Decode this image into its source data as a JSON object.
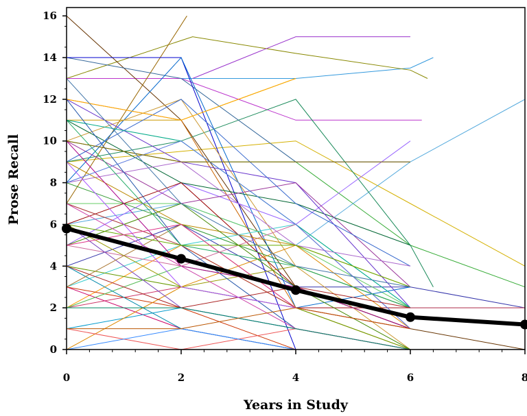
{
  "chart_data": {
    "type": "line",
    "title": "",
    "xlabel": "Years in Study",
    "ylabel": "Prose Recall",
    "xlim": [
      0,
      8
    ],
    "ylim": [
      0,
      16.4
    ],
    "xticks": [
      "0",
      "2",
      "4",
      "6",
      "8"
    ],
    "yticks": [
      "0",
      "2",
      "4",
      "6",
      "8",
      "10",
      "12",
      "14",
      "16"
    ],
    "grid": false,
    "legend": "none",
    "mean_series": {
      "color": "#000000",
      "points": [
        [
          0,
          5.8
        ],
        [
          2,
          4.35
        ],
        [
          4,
          2.85
        ],
        [
          6,
          1.55
        ],
        [
          8,
          1.2
        ]
      ]
    },
    "individual_series": [
      {
        "color": "#d4b000",
        "points": [
          [
            0,
            9
          ],
          [
            2,
            9.5
          ],
          [
            4,
            10
          ],
          [
            6,
            7
          ],
          [
            8,
            4
          ]
        ]
      },
      {
        "color": "#33aa33",
        "points": [
          [
            0,
            10
          ],
          [
            2,
            9
          ],
          [
            4,
            9
          ],
          [
            6,
            5
          ],
          [
            8,
            3
          ]
        ]
      },
      {
        "color": "#3399dd",
        "points": [
          [
            0,
            13
          ],
          [
            2,
            13
          ],
          [
            4,
            13
          ],
          [
            6,
            13.5
          ],
          [
            6.4,
            14
          ]
        ]
      },
      {
        "color": "#888800",
        "points": [
          [
            0,
            13
          ],
          [
            2.2,
            15
          ],
          [
            4,
            14.2
          ],
          [
            6,
            13.4
          ],
          [
            6.3,
            13
          ]
        ]
      },
      {
        "color": "#9933cc",
        "points": [
          [
            2.2,
            13
          ],
          [
            4,
            15
          ],
          [
            6,
            15
          ]
        ]
      },
      {
        "color": "#bb33cc",
        "points": [
          [
            0,
            13
          ],
          [
            2,
            13
          ],
          [
            4,
            11
          ],
          [
            6.2,
            11
          ]
        ]
      },
      {
        "color": "#55aadd",
        "points": [
          [
            0,
            6
          ],
          [
            2,
            7
          ],
          [
            4,
            5
          ],
          [
            6,
            9
          ],
          [
            8,
            12
          ]
        ]
      },
      {
        "color": "#663300",
        "points": [
          [
            0,
            16
          ],
          [
            2,
            11
          ],
          [
            4,
            3
          ],
          [
            6,
            1
          ],
          [
            8,
            0
          ]
        ]
      },
      {
        "color": "#996600",
        "points": [
          [
            0,
            7
          ],
          [
            2.1,
            16
          ]
        ]
      },
      {
        "color": "#1a8a5a",
        "points": [
          [
            0,
            9
          ],
          [
            2,
            10
          ],
          [
            4,
            12
          ],
          [
            6,
            5
          ],
          [
            6.4,
            3
          ]
        ]
      },
      {
        "color": "#336699",
        "points": [
          [
            0,
            14
          ],
          [
            2,
            13
          ],
          [
            4,
            9
          ],
          [
            6,
            9
          ]
        ]
      },
      {
        "color": "#0000cc",
        "points": [
          [
            0,
            14
          ],
          [
            2,
            14
          ],
          [
            4,
            0
          ]
        ]
      },
      {
        "color": "#3333aa",
        "points": [
          [
            0,
            4
          ],
          [
            2,
            6
          ],
          [
            4,
            3
          ],
          [
            6,
            3
          ],
          [
            8,
            2
          ]
        ]
      },
      {
        "color": "#cc9900",
        "points": [
          [
            0,
            11
          ],
          [
            2,
            11
          ],
          [
            4,
            13
          ]
        ]
      },
      {
        "color": "#66cc66",
        "points": [
          [
            0,
            7
          ],
          [
            2,
            7
          ],
          [
            4,
            5
          ],
          [
            6,
            2
          ],
          [
            8,
            2
          ]
        ]
      },
      {
        "color": "#cc3366",
        "points": [
          [
            0,
            2
          ],
          [
            2,
            3
          ],
          [
            4,
            2
          ],
          [
            6,
            2
          ],
          [
            8,
            2
          ]
        ]
      },
      {
        "color": "#0066cc",
        "points": [
          [
            0,
            8
          ],
          [
            2,
            14
          ],
          [
            4,
            2
          ],
          [
            6,
            3
          ]
        ]
      },
      {
        "color": "#cc6600",
        "points": [
          [
            0,
            12
          ],
          [
            2,
            11
          ],
          [
            4,
            2
          ],
          [
            6,
            1
          ]
        ]
      },
      {
        "color": "#cc9933",
        "points": [
          [
            0,
            10
          ],
          [
            2,
            12
          ],
          [
            4,
            4
          ],
          [
            6,
            0
          ]
        ]
      },
      {
        "color": "#9966ff",
        "points": [
          [
            0,
            5
          ],
          [
            2,
            8
          ],
          [
            4,
            6
          ],
          [
            6,
            10
          ]
        ]
      },
      {
        "color": "#33cccc",
        "points": [
          [
            0,
            3
          ],
          [
            2,
            5
          ],
          [
            4,
            6
          ],
          [
            6,
            2
          ]
        ]
      },
      {
        "color": "#006633",
        "points": [
          [
            0,
            11
          ],
          [
            2,
            8
          ],
          [
            4,
            7
          ],
          [
            6,
            5
          ]
        ]
      },
      {
        "color": "#990000",
        "points": [
          [
            0,
            6
          ],
          [
            2,
            8
          ],
          [
            4,
            3
          ],
          [
            6,
            1
          ]
        ]
      },
      {
        "color": "#ff9900",
        "points": [
          [
            0,
            2
          ],
          [
            2,
            5
          ],
          [
            4,
            2
          ],
          [
            6,
            0
          ]
        ]
      },
      {
        "color": "#6633cc",
        "points": [
          [
            0,
            12
          ],
          [
            2,
            9
          ],
          [
            4,
            8
          ],
          [
            6,
            2
          ]
        ]
      },
      {
        "color": "#cc0066",
        "points": [
          [
            0,
            3
          ],
          [
            2,
            1
          ],
          [
            4,
            0
          ]
        ]
      },
      {
        "color": "#339933",
        "points": [
          [
            0,
            8
          ],
          [
            2,
            6
          ],
          [
            4,
            4
          ],
          [
            6,
            2
          ]
        ]
      },
      {
        "color": "#0099cc",
        "points": [
          [
            0,
            1
          ],
          [
            2,
            2
          ],
          [
            4,
            1
          ],
          [
            6,
            0
          ]
        ]
      },
      {
        "color": "#993399",
        "points": [
          [
            0,
            10
          ],
          [
            2,
            7
          ],
          [
            4,
            8
          ],
          [
            6,
            3
          ]
        ]
      },
      {
        "color": "#669900",
        "points": [
          [
            0,
            4
          ],
          [
            2,
            3
          ],
          [
            4,
            2
          ],
          [
            6,
            0
          ]
        ]
      },
      {
        "color": "#cc6699",
        "points": [
          [
            0,
            5
          ],
          [
            2,
            4
          ],
          [
            4,
            6
          ],
          [
            6,
            1
          ]
        ]
      },
      {
        "color": "#3366cc",
        "points": [
          [
            0,
            9
          ],
          [
            2,
            12
          ],
          [
            4,
            7
          ],
          [
            6,
            4
          ]
        ]
      },
      {
        "color": "#999900",
        "points": [
          [
            0,
            6
          ],
          [
            2,
            3
          ],
          [
            4,
            4
          ],
          [
            6,
            2
          ]
        ]
      },
      {
        "color": "#cc3300",
        "points": [
          [
            0,
            3
          ],
          [
            2,
            2
          ],
          [
            4,
            0
          ]
        ]
      },
      {
        "color": "#00aa88",
        "points": [
          [
            0,
            11
          ],
          [
            2,
            10
          ],
          [
            4,
            6
          ],
          [
            6,
            2
          ]
        ]
      },
      {
        "color": "#aa66cc",
        "points": [
          [
            0,
            8
          ],
          [
            2,
            9
          ],
          [
            4,
            5
          ],
          [
            6,
            4
          ]
        ]
      },
      {
        "color": "#dd8800",
        "points": [
          [
            0,
            0
          ],
          [
            2,
            3
          ],
          [
            4,
            5
          ],
          [
            6,
            1
          ]
        ]
      },
      {
        "color": "#2255aa",
        "points": [
          [
            0,
            12
          ],
          [
            2,
            5
          ],
          [
            4,
            1
          ],
          [
            6,
            0
          ]
        ]
      },
      {
        "color": "#aa3333",
        "points": [
          [
            0,
            7
          ],
          [
            2,
            5
          ],
          [
            4,
            2
          ],
          [
            6,
            2
          ]
        ]
      },
      {
        "color": "#55bb55",
        "points": [
          [
            0,
            2
          ],
          [
            2,
            4
          ],
          [
            4,
            3
          ],
          [
            6,
            1
          ]
        ]
      },
      {
        "color": "#7744bb",
        "points": [
          [
            0,
            6
          ],
          [
            2,
            2
          ],
          [
            4,
            1
          ],
          [
            6,
            0
          ]
        ]
      },
      {
        "color": "#bb8800",
        "points": [
          [
            0,
            9
          ],
          [
            2,
            6
          ],
          [
            4,
            5
          ],
          [
            6,
            3
          ]
        ]
      },
      {
        "color": "#0088aa",
        "points": [
          [
            0,
            4
          ],
          [
            2,
            1
          ],
          [
            4,
            0
          ]
        ]
      },
      {
        "color": "#aa0088",
        "points": [
          [
            0,
            10
          ],
          [
            2,
            4
          ],
          [
            4,
            3
          ],
          [
            6,
            1
          ]
        ]
      },
      {
        "color": "#448800",
        "points": [
          [
            0,
            5
          ],
          [
            2,
            7
          ],
          [
            4,
            3
          ],
          [
            6,
            0
          ]
        ]
      },
      {
        "color": "#ee5555",
        "points": [
          [
            0,
            1
          ],
          [
            2,
            0
          ],
          [
            4,
            1
          ],
          [
            6,
            0
          ]
        ]
      },
      {
        "color": "#5577dd",
        "points": [
          [
            0,
            8
          ],
          [
            2,
            10
          ],
          [
            4,
            6
          ],
          [
            6,
            1
          ]
        ]
      },
      {
        "color": "#aa7733",
        "points": [
          [
            0,
            3
          ],
          [
            2,
            6
          ],
          [
            4,
            2
          ],
          [
            6,
            1
          ]
        ]
      },
      {
        "color": "#22aa66",
        "points": [
          [
            0,
            11
          ],
          [
            2,
            5
          ],
          [
            4,
            4
          ],
          [
            6,
            2
          ]
        ]
      },
      {
        "color": "#cc44aa",
        "points": [
          [
            0,
            7
          ],
          [
            2,
            4
          ],
          [
            4,
            1
          ],
          [
            6,
            0
          ]
        ]
      },
      {
        "color": "#3388ff",
        "points": [
          [
            0,
            0
          ],
          [
            2,
            1
          ],
          [
            4,
            0
          ],
          [
            6,
            0
          ]
        ]
      },
      {
        "color": "#886600",
        "points": [
          [
            0,
            10
          ],
          [
            2,
            9
          ],
          [
            4,
            9
          ],
          [
            6,
            9
          ]
        ]
      },
      {
        "color": "#aa2222",
        "points": [
          [
            0,
            4
          ],
          [
            2,
            2
          ],
          [
            4,
            3
          ],
          [
            6,
            2
          ]
        ]
      },
      {
        "color": "#66aa00",
        "points": [
          [
            0,
            6
          ],
          [
            2,
            5
          ],
          [
            4,
            5
          ],
          [
            6,
            3
          ]
        ]
      },
      {
        "color": "#ffaa00",
        "points": [
          [
            0,
            12
          ],
          [
            2,
            11
          ],
          [
            4,
            13
          ]
        ]
      },
      {
        "color": "#aa55ff",
        "points": [
          [
            0,
            9
          ],
          [
            2,
            3
          ],
          [
            4,
            2
          ]
        ]
      },
      {
        "color": "#008866",
        "points": [
          [
            0,
            2
          ],
          [
            2,
            2
          ],
          [
            4,
            1
          ],
          [
            6,
            0
          ]
        ]
      },
      {
        "color": "#dd3388",
        "points": [
          [
            0,
            5
          ],
          [
            2,
            6
          ],
          [
            4,
            2
          ],
          [
            6,
            1
          ]
        ]
      },
      {
        "color": "#4477aa",
        "points": [
          [
            0,
            13
          ],
          [
            2,
            7
          ],
          [
            4,
            4
          ],
          [
            6,
            3
          ]
        ]
      },
      {
        "color": "#bb5500",
        "points": [
          [
            0,
            1
          ],
          [
            2,
            1
          ],
          [
            4,
            2
          ],
          [
            6,
            1
          ]
        ]
      }
    ]
  }
}
